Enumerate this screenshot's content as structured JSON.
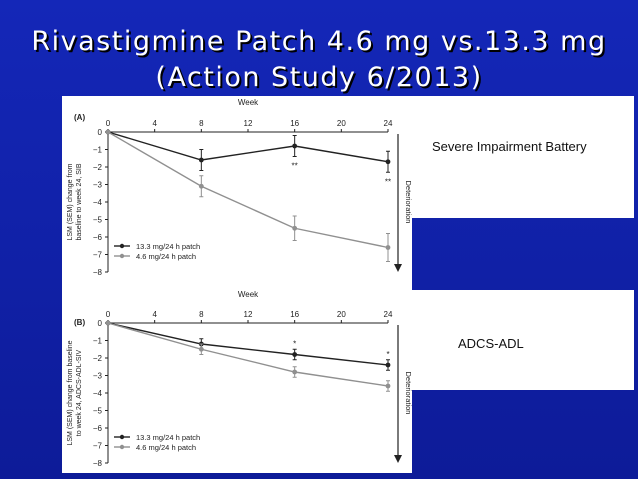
{
  "slide": {
    "title_line1": "Rivastigmine Patch  4.6 mg vs.13.3 mg",
    "title_line2": "(Action Study 6/2013)",
    "note_top": "Severe Impairment Battery",
    "note_bottom": "ADCS-ADL"
  },
  "colors": {
    "high_dose": "#222222",
    "low_dose": "#909090",
    "background": "#1427b8"
  },
  "chart_data": [
    {
      "type": "line",
      "panel_label": "(A)",
      "xlabel": "Week",
      "ylabel_line1": "LSM (SEM) change from",
      "ylabel_line2": "baseline to week 24, SIB",
      "side_label": "Deterioration",
      "x": [
        0,
        8,
        16,
        24
      ],
      "xticks": [
        0,
        4,
        8,
        12,
        16,
        20,
        24
      ],
      "yticks": [
        0,
        -1,
        -2,
        -3,
        -4,
        -5,
        -6,
        -7,
        -8
      ],
      "ylim": [
        -8,
        0
      ],
      "xlim": [
        0,
        24
      ],
      "series": [
        {
          "name": "13.3 mg/24 h patch",
          "values": [
            0,
            -1.6,
            -0.8,
            -1.7
          ],
          "err": [
            0,
            0.6,
            0.6,
            0.6
          ]
        },
        {
          "name": "4.6 mg/24 h patch",
          "values": [
            0,
            -3.1,
            -5.5,
            -6.6
          ],
          "err": [
            0,
            0.6,
            0.7,
            0.8
          ]
        }
      ],
      "annotations": [
        {
          "x": 16,
          "text": "**"
        },
        {
          "x": 24,
          "text": "**"
        }
      ]
    },
    {
      "type": "line",
      "panel_label": "(B)",
      "xlabel": "Week",
      "ylabel_line1": "LSM (SEM) change from baseline",
      "ylabel_line2": "to week 24, ADCS-ADL-SIV",
      "side_label": "Deterioration",
      "x": [
        0,
        8,
        16,
        24
      ],
      "xticks": [
        0,
        4,
        8,
        12,
        16,
        20,
        24
      ],
      "yticks": [
        0,
        -1,
        -2,
        -3,
        -4,
        -5,
        -6,
        -7,
        -8
      ],
      "ylim": [
        -8,
        0
      ],
      "xlim": [
        0,
        24
      ],
      "series": [
        {
          "name": "13.3 mg/24 h patch",
          "values": [
            0,
            -1.2,
            -1.8,
            -2.4
          ],
          "err": [
            0,
            0.3,
            0.3,
            0.3
          ]
        },
        {
          "name": "4.6 mg/24 h patch",
          "values": [
            0,
            -1.5,
            -2.8,
            -3.6
          ],
          "err": [
            0,
            0.3,
            0.3,
            0.3
          ]
        }
      ],
      "annotations": [
        {
          "x": 16,
          "text": "*"
        },
        {
          "x": 24,
          "text": "*"
        }
      ]
    }
  ]
}
